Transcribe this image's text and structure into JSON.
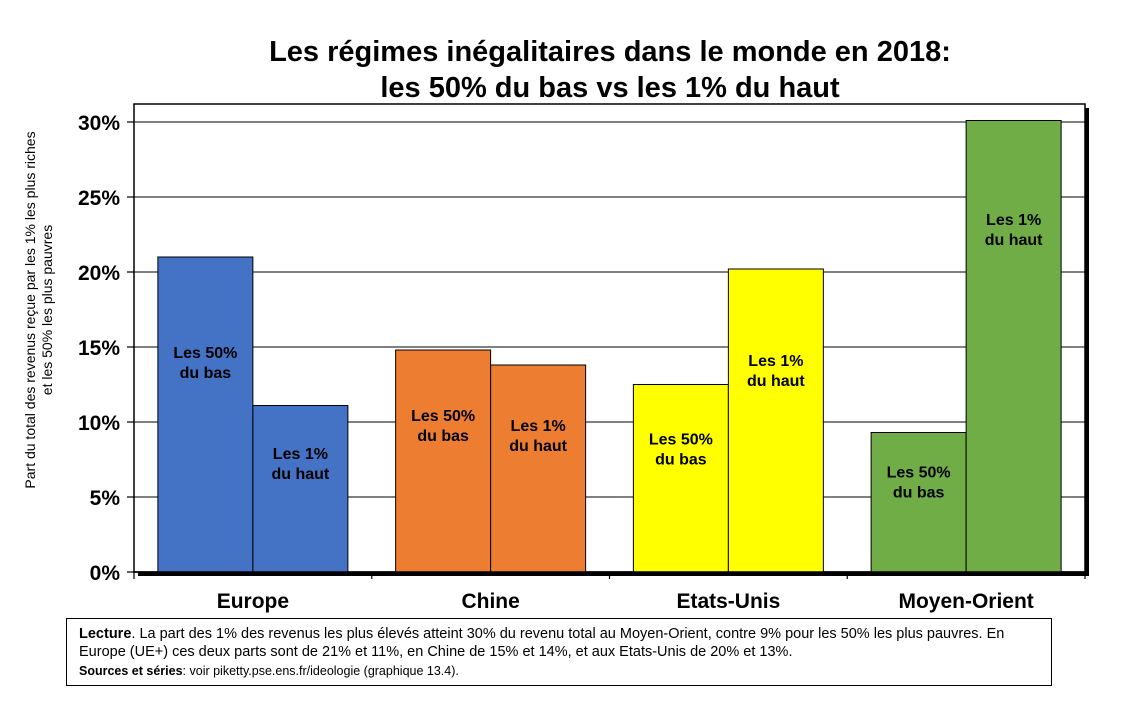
{
  "chart_data": {
    "type": "bar",
    "title_line1": "Les régimes inégalitaires dans le monde en 2018:",
    "title_line2": "les 50% du bas vs les 1% du haut",
    "ylabel_line1": "Part du total des revenus reçue par les 1% les plus riches",
    "ylabel_line2": "et les 50% les plus pauvres",
    "xlabel": "",
    "ylim": [
      0,
      30
    ],
    "yticks": [
      0,
      5,
      10,
      15,
      20,
      25,
      30
    ],
    "ytick_labels": [
      "0%",
      "5%",
      "10%",
      "15%",
      "20%",
      "25%",
      "30%"
    ],
    "grid": true,
    "categories": [
      "Europe",
      "Chine",
      "Etats-Unis",
      "Moyen-Orient"
    ],
    "colors": [
      "#4472c4",
      "#ed7d31",
      "#ffff00",
      "#70ad47"
    ],
    "series": [
      {
        "values": [
          21,
          14.8,
          12.5,
          9.3
        ],
        "bar_labels": [
          "Les 50%|du bas",
          "Les 50%|du bas",
          "Les 50%|du bas",
          "Les 50%|du bas"
        ]
      },
      {
        "values": [
          11.1,
          13.8,
          20.2,
          30.1
        ],
        "bar_labels": [
          "Les 1%|du haut",
          "Les 1%|du haut",
          "Les 1%|du haut",
          "Les 1%|du haut"
        ]
      }
    ]
  },
  "note": {
    "lead_bold": "Lecture",
    "lead_text": ". La part des 1% des revenus les plus élevés atteint 30% du revenu total au Moyen-Orient, contre 9% pour les 50% les plus pauvres. En Europe (UE+) ces deux parts sont de 21% et 11%, en Chine de 15% et 14%, et aux Etats-Unis de 20% et 13%.",
    "sources_bold": "Sources et séries",
    "sources_text": ": voir piketty.pse.ens.fr/ideologie (graphique 13.4)."
  }
}
